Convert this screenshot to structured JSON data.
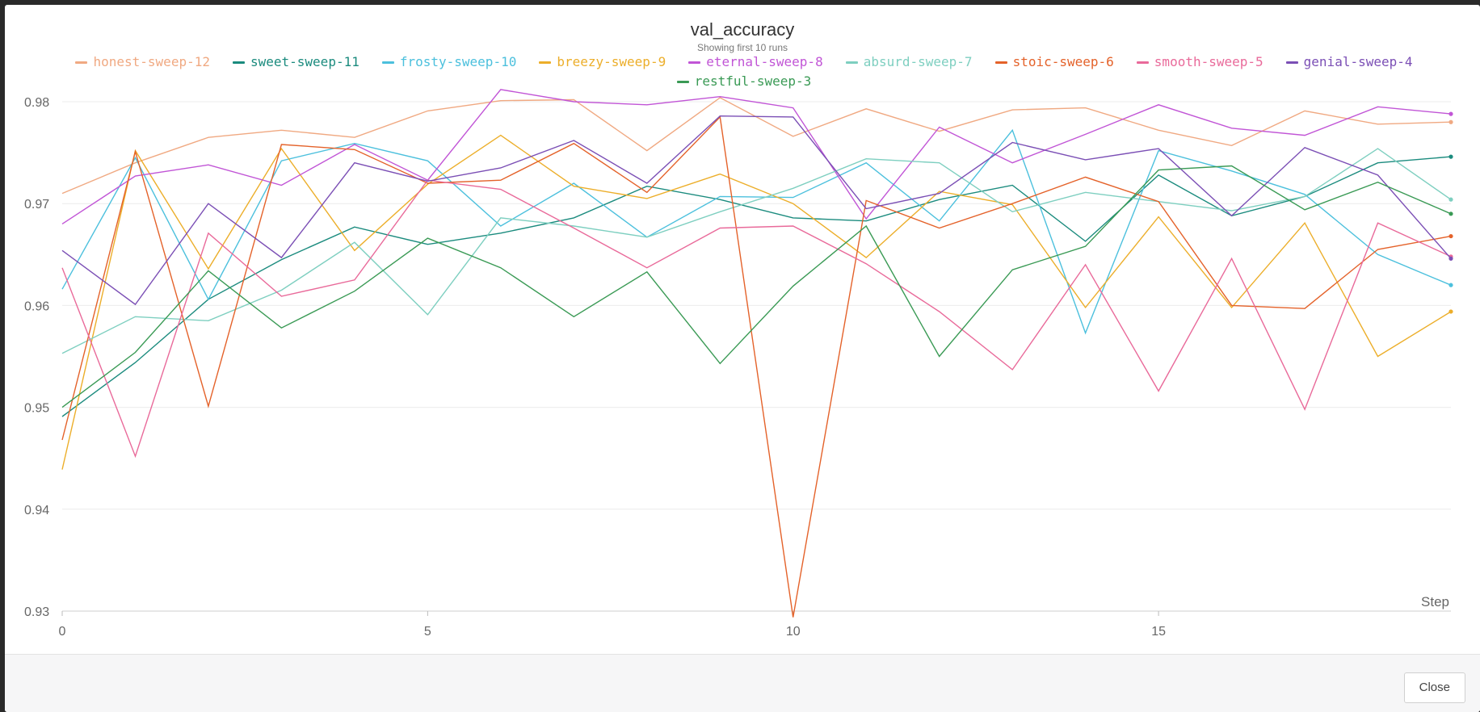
{
  "footer": {
    "close_label": "Close"
  },
  "chart_data": {
    "type": "line",
    "title": "val_accuracy",
    "subtitle": "Showing first 10 runs",
    "xlabel": "Step",
    "ylabel": "",
    "xlim": [
      0,
      19
    ],
    "ylim": [
      0.93,
      0.98
    ],
    "x_ticks": [
      0,
      5,
      10,
      15
    ],
    "y_ticks": [
      0.93,
      0.94,
      0.95,
      0.96,
      0.97,
      0.98
    ],
    "x_tick_labels": [
      "0",
      "5",
      "10",
      "15"
    ],
    "y_tick_labels": [
      "0.93",
      "0.94",
      "0.95",
      "0.96",
      "0.97",
      "0.98"
    ],
    "grid": true,
    "legend_position": "top",
    "x": [
      0,
      1,
      2,
      3,
      4,
      5,
      6,
      7,
      8,
      9,
      10,
      11,
      12,
      13,
      14,
      15,
      16,
      17,
      18,
      19
    ],
    "series": [
      {
        "name": "honest-sweep-12",
        "color": "#f0a982",
        "width": 1.4,
        "values": [
          0.971,
          0.974,
          0.9765,
          0.9772,
          0.9765,
          0.9791,
          0.9801,
          0.9802,
          0.9752,
          0.9804,
          0.9766,
          0.9793,
          0.9771,
          0.9792,
          0.9794,
          0.9772,
          0.9757,
          0.9791,
          0.9778,
          0.978
        ]
      },
      {
        "name": "sweet-sweep-11",
        "color": "#1b8b7e",
        "width": 1.4,
        "values": [
          0.9491,
          0.9544,
          0.9606,
          0.9645,
          0.9677,
          0.966,
          0.9671,
          0.9686,
          0.9717,
          0.9704,
          0.9686,
          0.9683,
          0.9704,
          0.9718,
          0.9663,
          0.9728,
          0.9688,
          0.9707,
          0.974,
          0.9746
        ]
      },
      {
        "name": "frosty-sweep-10",
        "color": "#4cc0dd",
        "width": 1.4,
        "values": [
          0.9616,
          0.9745,
          0.9606,
          0.9742,
          0.9759,
          0.9742,
          0.9678,
          0.972,
          0.9667,
          0.9707,
          0.9706,
          0.974,
          0.9683,
          0.9772,
          0.9573,
          0.9752,
          0.9732,
          0.9709,
          0.965,
          0.962
        ]
      },
      {
        "name": "breezy-sweep-9",
        "color": "#ecae2a",
        "width": 1.4,
        "values": [
          0.9439,
          0.9752,
          0.9636,
          0.9754,
          0.9654,
          0.9719,
          0.9767,
          0.9717,
          0.9705,
          0.9729,
          0.97,
          0.9647,
          0.9712,
          0.9699,
          0.9598,
          0.9687,
          0.9598,
          0.9681,
          0.955,
          0.9594
        ]
      },
      {
        "name": "eternal-sweep-8",
        "color": "#c155d6",
        "width": 1.4,
        "values": [
          0.968,
          0.9727,
          0.9738,
          0.9718,
          0.9758,
          0.9723,
          0.9812,
          0.98,
          0.9797,
          0.9805,
          0.9794,
          0.9685,
          0.9775,
          0.974,
          0.9768,
          0.9797,
          0.9774,
          0.9767,
          0.9795,
          0.9788
        ]
      },
      {
        "name": "absurd-sweep-7",
        "color": "#7ecfc0",
        "width": 1.4,
        "values": [
          0.9553,
          0.9589,
          0.9585,
          0.9615,
          0.9662,
          0.9591,
          0.9686,
          0.9678,
          0.9667,
          0.9692,
          0.9715,
          0.9744,
          0.974,
          0.9692,
          0.9711,
          0.9702,
          0.9693,
          0.9707,
          0.9754,
          0.9704
        ]
      },
      {
        "name": "stoic-sweep-6",
        "color": "#e4622a",
        "width": 1.4,
        "values": [
          0.9468,
          0.9751,
          0.9501,
          0.9758,
          0.9753,
          0.972,
          0.9723,
          0.9759,
          0.9711,
          0.9785,
          0.9294,
          0.9703,
          0.9676,
          0.97,
          0.9726,
          0.9702,
          0.96,
          0.9597,
          0.9655,
          0.9668
        ]
      },
      {
        "name": "smooth-sweep-5",
        "color": "#e96a9a",
        "width": 1.4,
        "values": [
          0.9637,
          0.9452,
          0.9671,
          0.9609,
          0.9625,
          0.9723,
          0.9714,
          0.9676,
          0.9637,
          0.9676,
          0.9678,
          0.9641,
          0.9594,
          0.9537,
          0.964,
          0.9516,
          0.9646,
          0.9498,
          0.9681,
          0.9648
        ]
      },
      {
        "name": "genial-sweep-4",
        "color": "#7b4fb5",
        "width": 1.4,
        "values": [
          0.9654,
          0.9601,
          0.97,
          0.9647,
          0.974,
          0.9722,
          0.9735,
          0.9762,
          0.972,
          0.9786,
          0.9785,
          0.9695,
          0.971,
          0.976,
          0.9743,
          0.9754,
          0.9688,
          0.9755,
          0.9728,
          0.9646
        ]
      },
      {
        "name": "restful-sweep-3",
        "color": "#3a9a55",
        "width": 1.4,
        "values": [
          0.95,
          0.9554,
          0.9634,
          0.9578,
          0.9614,
          0.9666,
          0.9637,
          0.9589,
          0.9633,
          0.9543,
          0.9619,
          0.9678,
          0.955,
          0.9635,
          0.9658,
          0.9733,
          0.9737,
          0.9694,
          0.9721,
          0.969
        ]
      }
    ]
  }
}
